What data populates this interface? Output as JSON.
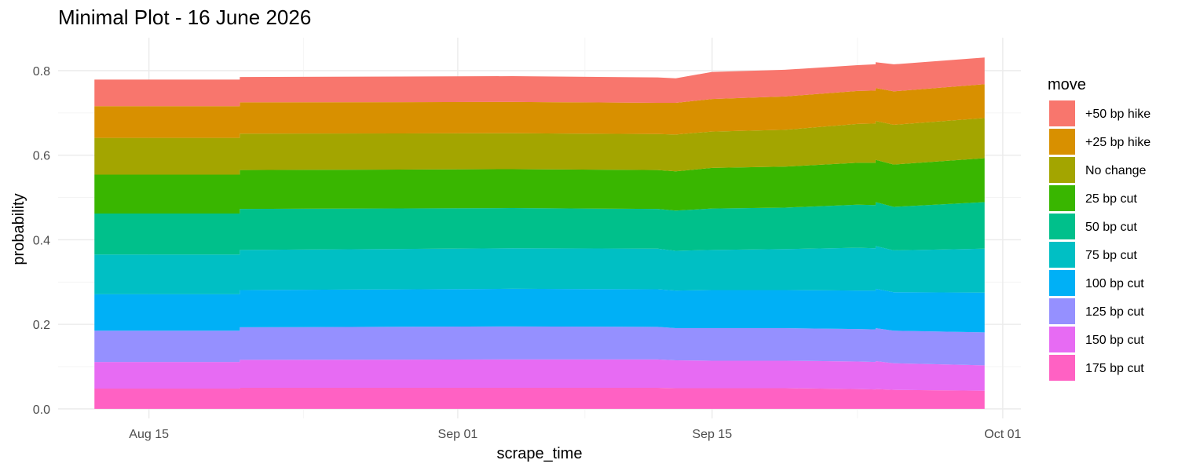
{
  "chart_data": {
    "type": "area",
    "stacked": true,
    "title": "Minimal Plot - 16 June 2026",
    "xlabel": "scrape_time",
    "ylabel": "probability",
    "x_ticks": [
      "Aug 15",
      "Sep 01",
      "Sep 15",
      "Oct 01"
    ],
    "y_ticks": [
      "0.0",
      "0.2",
      "0.4",
      "0.6",
      "0.8"
    ],
    "ylim": [
      -0.0225,
      0.878
    ],
    "xlim": [
      "2026-08-10",
      "2026-10-02"
    ],
    "grid": true,
    "legend": {
      "title": "move",
      "position": "right"
    },
    "x": [
      "2026-08-12",
      "2026-08-20",
      "2026-08-20",
      "2026-09-04",
      "2026-09-12",
      "2026-09-12",
      "2026-09-13",
      "2026-09-15",
      "2026-09-19",
      "2026-09-23",
      "2026-09-24",
      "2026-09-24",
      "2026-09-25",
      "2026-09-30"
    ],
    "series": [
      {
        "name": "175 bp cut",
        "color": "#FF61C3",
        "values": [
          0.048,
          0.048,
          0.05,
          0.05,
          0.05,
          0.05,
          0.049,
          0.049,
          0.049,
          0.047,
          0.046,
          0.047,
          0.045,
          0.043
        ]
      },
      {
        "name": "150 bp cut",
        "color": "#E76BF3",
        "values": [
          0.063,
          0.063,
          0.066,
          0.067,
          0.067,
          0.067,
          0.066,
          0.065,
          0.065,
          0.065,
          0.065,
          0.066,
          0.063,
          0.06
        ]
      },
      {
        "name": "125 bp cut",
        "color": "#9590FF",
        "values": [
          0.074,
          0.074,
          0.077,
          0.078,
          0.077,
          0.077,
          0.076,
          0.077,
          0.077,
          0.077,
          0.077,
          0.078,
          0.077,
          0.078
        ]
      },
      {
        "name": "100 bp cut",
        "color": "#00B0F6",
        "values": [
          0.086,
          0.086,
          0.088,
          0.089,
          0.089,
          0.089,
          0.089,
          0.09,
          0.09,
          0.091,
          0.092,
          0.093,
          0.091,
          0.094
        ]
      },
      {
        "name": "75 bp cut",
        "color": "#00BFC4",
        "values": [
          0.094,
          0.094,
          0.095,
          0.096,
          0.096,
          0.096,
          0.094,
          0.095,
          0.097,
          0.101,
          0.1,
          0.101,
          0.099,
          0.104
        ]
      },
      {
        "name": "50 bp cut",
        "color": "#00C08B",
        "values": [
          0.097,
          0.097,
          0.097,
          0.095,
          0.094,
          0.094,
          0.095,
          0.098,
          0.098,
          0.102,
          0.102,
          0.104,
          0.103,
          0.11
        ]
      },
      {
        "name": "25 bp cut",
        "color": "#39B600",
        "values": [
          0.092,
          0.092,
          0.092,
          0.092,
          0.092,
          0.092,
          0.093,
          0.096,
          0.097,
          0.099,
          0.1,
          0.1,
          0.1,
          0.104
        ]
      },
      {
        "name": "No change",
        "color": "#A3A500",
        "values": [
          0.087,
          0.087,
          0.086,
          0.085,
          0.085,
          0.085,
          0.087,
          0.086,
          0.087,
          0.092,
          0.093,
          0.092,
          0.094,
          0.095
        ]
      },
      {
        "name": "+25 bp hike",
        "color": "#D89000",
        "values": [
          0.075,
          0.075,
          0.074,
          0.074,
          0.074,
          0.074,
          0.075,
          0.077,
          0.079,
          0.078,
          0.078,
          0.078,
          0.079,
          0.08
        ]
      },
      {
        "name": "+50 bp hike",
        "color": "#F8766D",
        "values": [
          0.063,
          0.063,
          0.06,
          0.061,
          0.06,
          0.06,
          0.058,
          0.064,
          0.063,
          0.061,
          0.062,
          0.061,
          0.064,
          0.063
        ]
      }
    ]
  }
}
